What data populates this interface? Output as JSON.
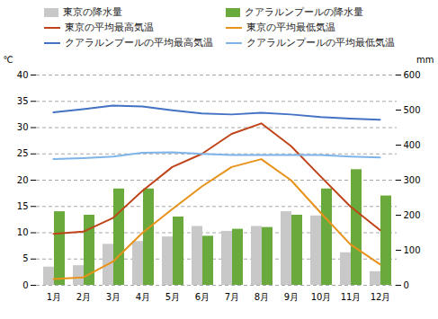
{
  "chart_data": {
    "type": "combo",
    "categories": [
      "1月",
      "2月",
      "3月",
      "4月",
      "5月",
      "6月",
      "7月",
      "8月",
      "9月",
      "10月",
      "11月",
      "12月"
    ],
    "series": [
      {
        "name": "東京の降水量",
        "type": "bar",
        "axis": "y2",
        "color": "#c8c8c8",
        "values": [
          52,
          56,
          117,
          125,
          138,
          168,
          154,
          168,
          210,
          198,
          93,
          39
        ]
      },
      {
        "name": "クアラルンプールの降水量",
        "type": "bar",
        "axis": "y2",
        "color": "#6aaa3c",
        "values": [
          210,
          200,
          275,
          275,
          195,
          140,
          160,
          165,
          200,
          275,
          330,
          255
        ]
      },
      {
        "name": "東京の平均最高気温",
        "type": "line",
        "color": "#c0441a",
        "values": [
          9.8,
          10.2,
          12.8,
          18.0,
          22.5,
          25.0,
          28.8,
          30.8,
          26.5,
          20.7,
          15.0,
          10.5
        ]
      },
      {
        "name": "東京の平均最低気温",
        "type": "line",
        "color": "#e8921a",
        "values": [
          1.2,
          1.5,
          4.5,
          10.0,
          14.5,
          18.8,
          22.5,
          24.0,
          20.0,
          13.8,
          7.8,
          4.0
        ]
      },
      {
        "name": "クアラルンプールの平均最高気温",
        "type": "line",
        "color": "#4472c4",
        "values": [
          32.9,
          33.5,
          34.2,
          34.0,
          33.3,
          32.7,
          32.5,
          32.8,
          32.5,
          32.0,
          31.7,
          31.5
        ]
      },
      {
        "name": "クアラルンプールの平均最低気温",
        "type": "line",
        "color": "#7eb4e8",
        "values": [
          24.0,
          24.2,
          24.5,
          25.2,
          25.3,
          25.0,
          24.8,
          24.8,
          24.8,
          24.8,
          24.5,
          24.3
        ]
      }
    ],
    "ylabel": "℃",
    "y2label": "mm",
    "ylim": [
      0,
      40
    ],
    "yticks": [
      0,
      5,
      10,
      15,
      20,
      25,
      30,
      35,
      40
    ],
    "y2lim": [
      0,
      600
    ],
    "y2ticks": [
      0,
      100,
      200,
      300,
      400,
      500,
      600
    ],
    "grid": true,
    "legend": "top"
  }
}
